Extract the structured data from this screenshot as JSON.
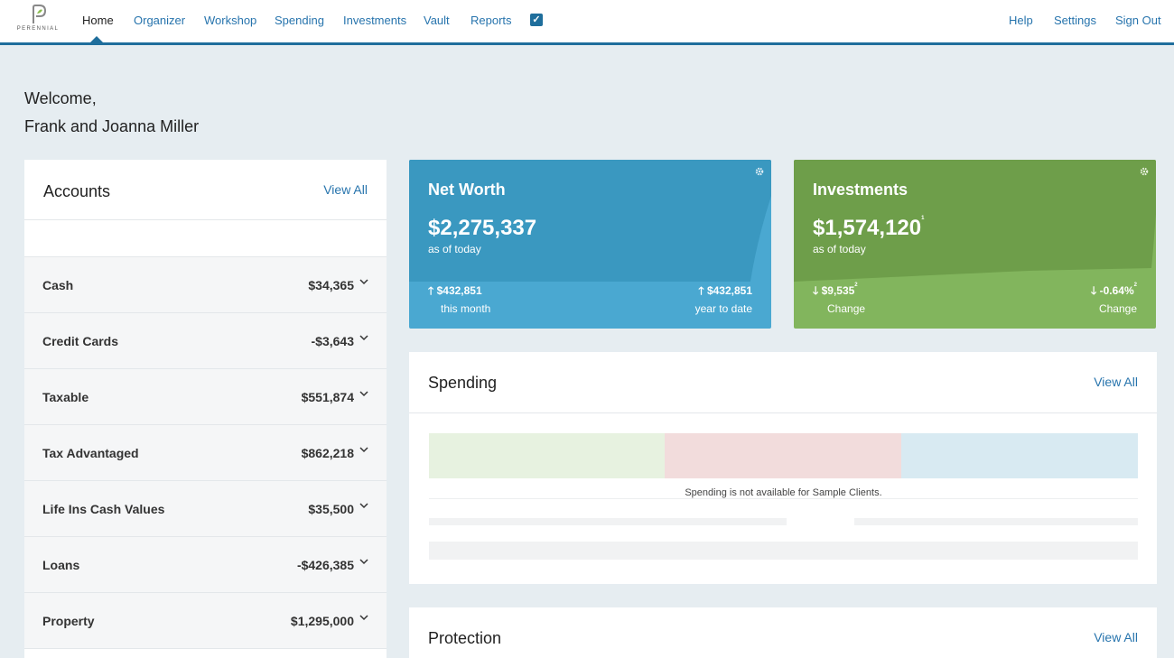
{
  "nav": {
    "logo_text": "PERENNIAL",
    "items": [
      "Home",
      "Organizer",
      "Workshop",
      "Spending",
      "Investments",
      "Vault",
      "Reports"
    ],
    "active": "Home",
    "right_items": [
      "Help",
      "Settings",
      "Sign Out"
    ],
    "accent": "#1f6e9c"
  },
  "welcome": {
    "line1": "Welcome,",
    "line2": "Frank and Joanna Miller"
  },
  "accounts": {
    "title": "Accounts",
    "view_all": "View All",
    "rows": [
      {
        "label": "Cash",
        "value": "$34,365"
      },
      {
        "label": "Credit Cards",
        "value": "-$3,643"
      },
      {
        "label": "Taxable",
        "value": "$551,874"
      },
      {
        "label": "Tax Advantaged",
        "value": "$862,218"
      },
      {
        "label": "Life Ins Cash Values",
        "value": "$35,500"
      },
      {
        "label": "Loans",
        "value": "-$426,385"
      },
      {
        "label": "Property",
        "value": "$1,295,000"
      }
    ]
  },
  "net_worth": {
    "title": "Net Worth",
    "value": "$2,275,337",
    "subtitle": "as of today",
    "left_value": "$432,851",
    "left_caption": "this month",
    "right_value": "$432,851",
    "right_caption": "year to date",
    "color": "#3a98c0"
  },
  "investments": {
    "title": "Investments",
    "value": "$1,574,120",
    "value_sup": "1",
    "subtitle": "as of today",
    "left_value": "$9,535",
    "left_sup": "2",
    "left_caption": "Change",
    "right_value": "-0.64%",
    "right_sup": "2",
    "right_caption": "Change",
    "color": "#6e9e4a"
  },
  "spending": {
    "title": "Spending",
    "view_all": "View All",
    "message": "Spending is not available for Sample Clients."
  },
  "protection": {
    "title": "Protection",
    "view_all": "View All"
  },
  "icons": {
    "logo": "perennial-logo-icon",
    "check": "checkbox-checked-icon",
    "chevron": "chevron-down-icon",
    "gear": "gear-icon",
    "arrow_up": "arrow-up-icon",
    "arrow_down": "arrow-down-icon"
  }
}
